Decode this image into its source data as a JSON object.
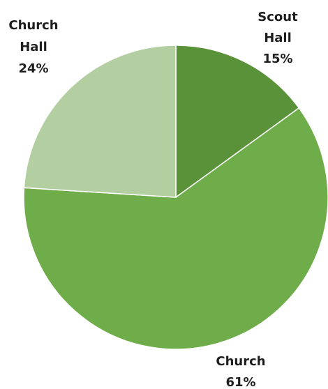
{
  "chart_data": {
    "type": "pie",
    "title": "",
    "slices": [
      {
        "name": "Scout Hall",
        "value": 15,
        "label_lines": [
          "Scout",
          "Hall",
          "15%"
        ],
        "color": "#5a9239"
      },
      {
        "name": "Church",
        "value": 61,
        "label_lines": [
          "Church",
          "61%"
        ],
        "color": "#6ead49"
      },
      {
        "name": "Church Hall",
        "value": 24,
        "label_lines": [
          "Church",
          "Hall",
          "24%"
        ],
        "color": "#b3cfa2"
      }
    ],
    "legend": "none",
    "start_angle": "12 o'clock",
    "direction": "clockwise"
  }
}
